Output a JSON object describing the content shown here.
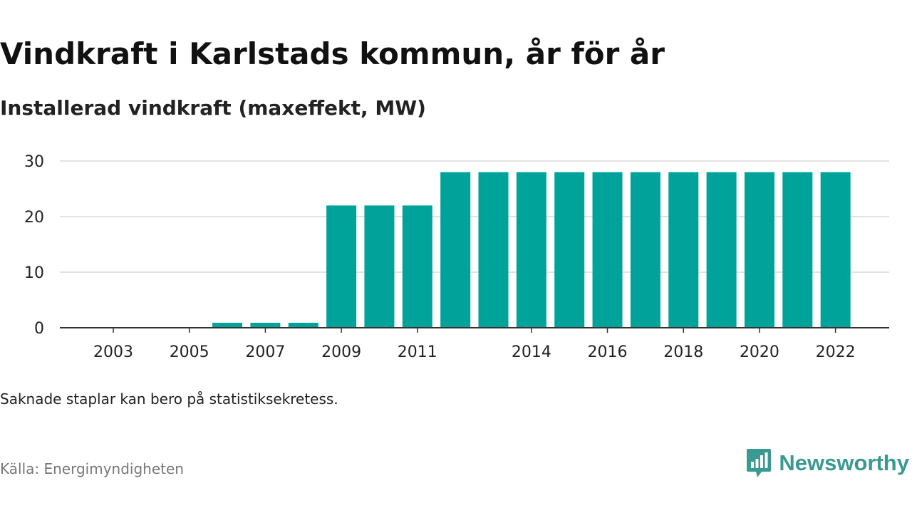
{
  "title": "Vindkraft i Karlstads kommun, år för år",
  "subtitle": "Installerad vindkraft (maxeffekt, MW)",
  "note": "Saknade staplar kan bero på statistiksekretess.",
  "source": "Källa: Energimyndigheten",
  "brand": {
    "name": "Newsworthy",
    "color": "#3a9a92",
    "icon": "newsworthy-logo-icon"
  },
  "chart_data": {
    "type": "bar",
    "categories": [
      "2003",
      "2004",
      "2005",
      "2006",
      "2007",
      "2008",
      "2009",
      "2010",
      "2011",
      "2012",
      "2013",
      "2014",
      "2015",
      "2016",
      "2017",
      "2018",
      "2019",
      "2020",
      "2021",
      "2022"
    ],
    "values": [
      0,
      0,
      0,
      0.9,
      0.9,
      0.9,
      22,
      22,
      22,
      28,
      28,
      28,
      28,
      28,
      28,
      28,
      28,
      28,
      28,
      28
    ],
    "xtick_labels": [
      "2003",
      "2005",
      "2007",
      "2009",
      "2011",
      "2014",
      "2016",
      "2018",
      "2020",
      "2022"
    ],
    "yticks": [
      0,
      10,
      20,
      30
    ],
    "ylim": [
      0,
      30
    ],
    "xlabel": "",
    "ylabel": "",
    "grid": true,
    "bar_color": "#00a39a"
  }
}
